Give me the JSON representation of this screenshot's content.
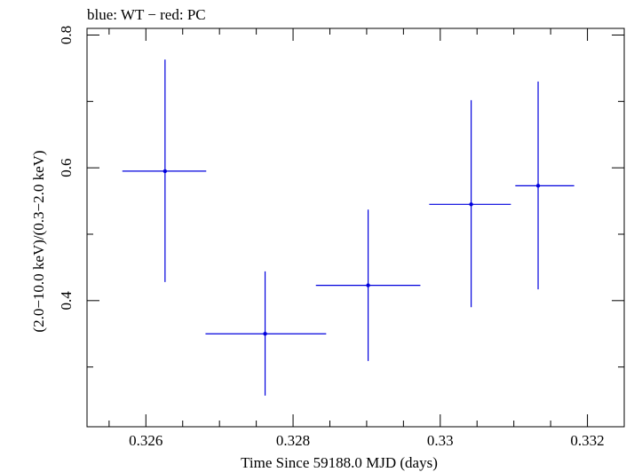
{
  "chart_data": {
    "type": "scatter",
    "title": "blue: WT − red: PC",
    "xlabel": "Time Since 59188.0 MJD (days)",
    "ylabel": "(2.0−10.0 keV)/(0.3−2.0 keV)",
    "xlim": [
      0.3252,
      0.3325
    ],
    "ylim": [
      0.21,
      0.81
    ],
    "x_ticks": [
      {
        "value": 0.326,
        "label": "0.326"
      },
      {
        "value": 0.328,
        "label": "0.328"
      },
      {
        "value": 0.33,
        "label": "0.33"
      },
      {
        "value": 0.332,
        "label": "0.332"
      }
    ],
    "y_ticks": [
      {
        "value": 0.4,
        "label": "0.4"
      },
      {
        "value": 0.6,
        "label": "0.6"
      },
      {
        "value": 0.8,
        "label": "0.8"
      }
    ],
    "x_minor_step": 0.0005,
    "y_minor_step": 0.1,
    "series": [
      {
        "name": "WT",
        "color": "#0000dd",
        "points": [
          {
            "x": 0.32626,
            "xerr_lo": 0.00058,
            "xerr_hi": 0.00056,
            "y": 0.595,
            "yerr_lo": 0.167,
            "yerr_hi": 0.168
          },
          {
            "x": 0.32762,
            "xerr_lo": 0.00081,
            "xerr_hi": 0.00083,
            "y": 0.35,
            "yerr_lo": 0.093,
            "yerr_hi": 0.094
          },
          {
            "x": 0.32902,
            "xerr_lo": 0.00071,
            "xerr_hi": 0.00071,
            "y": 0.423,
            "yerr_lo": 0.114,
            "yerr_hi": 0.114
          },
          {
            "x": 0.33042,
            "xerr_lo": 0.00057,
            "xerr_hi": 0.00054,
            "y": 0.545,
            "yerr_lo": 0.155,
            "yerr_hi": 0.157
          },
          {
            "x": 0.33133,
            "xerr_lo": 0.00031,
            "xerr_hi": 0.00049,
            "y": 0.573,
            "yerr_lo": 0.156,
            "yerr_hi": 0.157
          }
        ]
      }
    ]
  }
}
